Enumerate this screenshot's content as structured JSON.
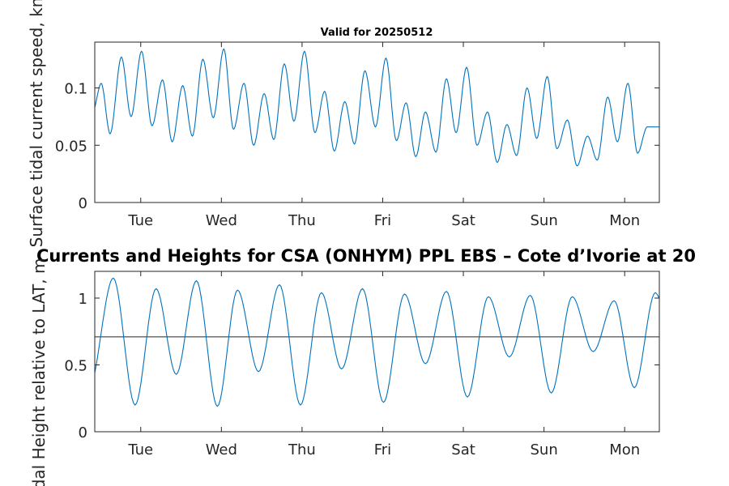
{
  "chart_data": [
    {
      "type": "line",
      "title": "Valid for 20250512",
      "ylabel": "Surface tidal current speed, kn",
      "xlabel": "",
      "x_range_days": [
        0,
        7
      ],
      "ylim": [
        0,
        0.14
      ],
      "yticks": [
        0,
        0.05,
        0.1
      ],
      "ytick_labels": [
        "0",
        "0.05",
        "0.1"
      ],
      "xticks": [
        0.57,
        1.57,
        2.57,
        3.57,
        4.57,
        5.57,
        6.57
      ],
      "xtick_labels": [
        "Tue",
        "Wed",
        "Thu",
        "Fri",
        "Sat",
        "Sun",
        "Mon"
      ],
      "grid": false,
      "legend": "none",
      "series": [
        {
          "color": "#0072BD",
          "points": [
            [
              0,
              0.083
            ],
            [
              0.08,
              0.104
            ],
            [
              0.19,
              0.06
            ],
            [
              0.33,
              0.127
            ],
            [
              0.45,
              0.075
            ],
            [
              0.58,
              0.132
            ],
            [
              0.71,
              0.067
            ],
            [
              0.84,
              0.107
            ],
            [
              0.96,
              0.053
            ],
            [
              1.09,
              0.102
            ],
            [
              1.21,
              0.058
            ],
            [
              1.34,
              0.125
            ],
            [
              1.47,
              0.074
            ],
            [
              1.6,
              0.134
            ],
            [
              1.72,
              0.064
            ],
            [
              1.85,
              0.104
            ],
            [
              1.97,
              0.05
            ],
            [
              2.1,
              0.095
            ],
            [
              2.22,
              0.055
            ],
            [
              2.35,
              0.121
            ],
            [
              2.47,
              0.071
            ],
            [
              2.6,
              0.132
            ],
            [
              2.73,
              0.061
            ],
            [
              2.85,
              0.097
            ],
            [
              2.97,
              0.045
            ],
            [
              3.1,
              0.088
            ],
            [
              3.22,
              0.051
            ],
            [
              3.35,
              0.115
            ],
            [
              3.48,
              0.066
            ],
            [
              3.61,
              0.126
            ],
            [
              3.74,
              0.054
            ],
            [
              3.86,
              0.087
            ],
            [
              3.98,
              0.04
            ],
            [
              4.1,
              0.079
            ],
            [
              4.23,
              0.044
            ],
            [
              4.36,
              0.108
            ],
            [
              4.48,
              0.061
            ],
            [
              4.61,
              0.118
            ],
            [
              4.74,
              0.05
            ],
            [
              4.87,
              0.079
            ],
            [
              4.99,
              0.035
            ],
            [
              5.11,
              0.068
            ],
            [
              5.23,
              0.041
            ],
            [
              5.36,
              0.1
            ],
            [
              5.48,
              0.056
            ],
            [
              5.61,
              0.11
            ],
            [
              5.73,
              0.047
            ],
            [
              5.86,
              0.072
            ],
            [
              5.98,
              0.032
            ],
            [
              6.11,
              0.058
            ],
            [
              6.23,
              0.037
            ],
            [
              6.36,
              0.092
            ],
            [
              6.48,
              0.053
            ],
            [
              6.61,
              0.104
            ],
            [
              6.73,
              0.043
            ],
            [
              6.85,
              0.066
            ],
            [
              7,
              0.066
            ]
          ]
        }
      ]
    },
    {
      "type": "line",
      "title": "Currents and Heights for CSA (ONHYM) PPL EBS  – Cote d’Ivorie at 20",
      "ylabel": "Tidal Height relative to LAT, m",
      "xlabel": "",
      "x_range_days": [
        0,
        7
      ],
      "ylim": [
        0,
        1.2
      ],
      "yticks": [
        0,
        0.5,
        1
      ],
      "ytick_labels": [
        "0",
        "0.5",
        "1"
      ],
      "xticks": [
        0.57,
        1.57,
        2.57,
        3.57,
        4.57,
        5.57,
        6.57
      ],
      "xtick_labels": [
        "Tue",
        "Wed",
        "Thu",
        "Fri",
        "Sat",
        "Sun",
        "Mon"
      ],
      "grid": false,
      "legend": "none",
      "reference_line": 0.71,
      "series": [
        {
          "color": "#0072BD",
          "points": [
            [
              0,
              0.44
            ],
            [
              0.23,
              1.15
            ],
            [
              0.5,
              0.2
            ],
            [
              0.76,
              1.07
            ],
            [
              1.01,
              0.43
            ],
            [
              1.26,
              1.13
            ],
            [
              1.52,
              0.19
            ],
            [
              1.77,
              1.06
            ],
            [
              2.03,
              0.45
            ],
            [
              2.29,
              1.1
            ],
            [
              2.55,
              0.2
            ],
            [
              2.81,
              1.04
            ],
            [
              3.06,
              0.47
            ],
            [
              3.32,
              1.07
            ],
            [
              3.58,
              0.22
            ],
            [
              3.84,
              1.03
            ],
            [
              4.1,
              0.51
            ],
            [
              4.36,
              1.05
            ],
            [
              4.62,
              0.26
            ],
            [
              4.88,
              1.01
            ],
            [
              5.14,
              0.56
            ],
            [
              5.4,
              1.02
            ],
            [
              5.66,
              0.29
            ],
            [
              5.92,
              1.01
            ],
            [
              6.18,
              0.6
            ],
            [
              6.44,
              0.98
            ],
            [
              6.69,
              0.33
            ],
            [
              6.95,
              1.04
            ],
            [
              7,
              1.0
            ]
          ]
        }
      ]
    }
  ]
}
